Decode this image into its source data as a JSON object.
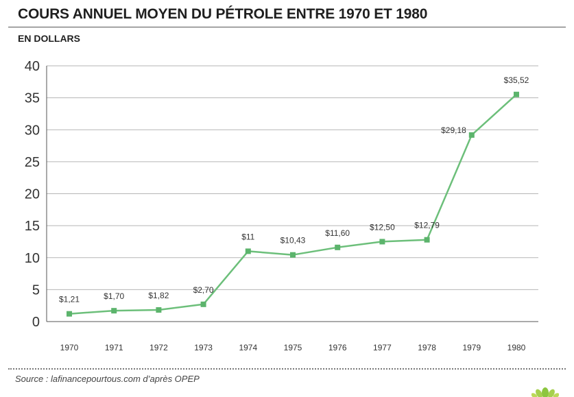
{
  "title": "COURS ANNUEL MOYEN DU PÉTROLE ENTRE 1970 ET 1980",
  "subtitle": "EN DOLLARS",
  "source": "Source : lafinancepourtous.com d’après OPEP",
  "colors": {
    "line": "#6cbf7a",
    "marker": "#5cb46c",
    "grid": "#b5b5b5",
    "text": "#333333"
  },
  "chart_data": {
    "type": "line",
    "title": "COURS ANNUEL MOYEN DU PÉTROLE ENTRE 1970 ET 1980",
    "xlabel": "",
    "ylabel": "EN DOLLARS",
    "categories": [
      "1970",
      "1971",
      "1972",
      "1973",
      "1974",
      "1975",
      "1976",
      "1977",
      "1978",
      "1979",
      "1980"
    ],
    "values": [
      1.21,
      1.7,
      1.82,
      2.7,
      11,
      10.43,
      11.6,
      12.5,
      12.79,
      29.18,
      35.52
    ],
    "data_labels": [
      "$1,21",
      "$1,70",
      "$1,82",
      "$2,70",
      "$11",
      "$10,43",
      "$11,60",
      "$12,50",
      "$12,79",
      "$29,18",
      "$35,52"
    ],
    "yticks": [
      0,
      5,
      10,
      15,
      20,
      25,
      30,
      35,
      40
    ],
    "ylim": [
      0,
      40
    ],
    "grid": true,
    "legend": "none"
  }
}
